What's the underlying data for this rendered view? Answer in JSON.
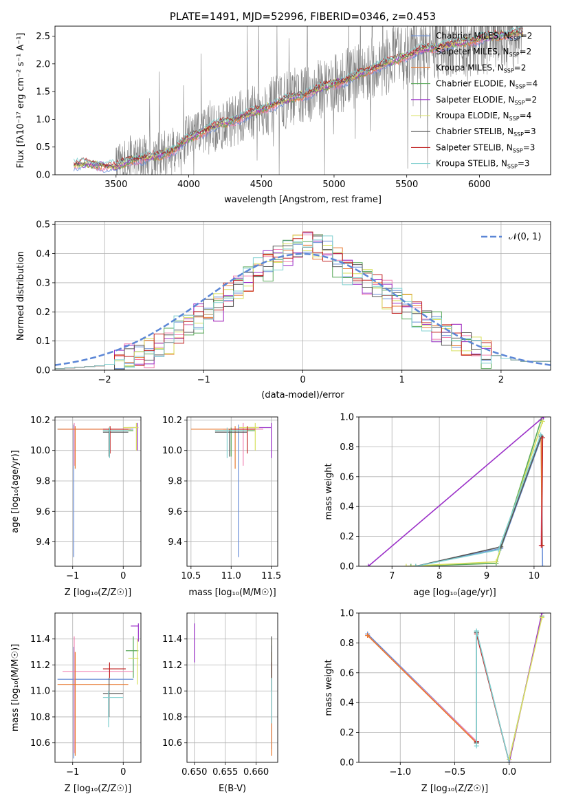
{
  "colors": {
    "Chabrier MILES": "#6a8fd8",
    "Salpeter MILES": "#f080b0",
    "Kroupa MILES": "#e87a30",
    "Chabrier ELODIE": "#58a858",
    "Salpeter ELODIE": "#9b30c8",
    "Kroupa ELODIE": "#d8e060",
    "Chabrier STELIB": "#555555",
    "Salpeter STELIB": "#c02020",
    "Kroupa STELIB": "#80d0d0",
    "data": "#808080",
    "gauss": "#5b86d6"
  },
  "chart_data": [
    {
      "type": "line",
      "title": "PLATE=1491, MJD=52996, FIBERID=0346, z=0.453",
      "xlabel": "wavelength [Angstrom, rest frame]",
      "ylabel": "Flux [f_λ 10^-17 erg cm^-2 s^-1 A^-1]",
      "xlim": [
        3080,
        6490
      ],
      "ylim": [
        0,
        2.68
      ],
      "xticks": [
        3500,
        4000,
        4500,
        5000,
        5500,
        6000
      ],
      "yticks": [
        0.0,
        0.5,
        1.0,
        1.5,
        2.0,
        2.5
      ],
      "legend_position": "top-right",
      "legend": [
        {
          "model": "Chabrier MILES",
          "label": "Chabrier MILES, N",
          "sub": "SSP",
          "tail": "=2"
        },
        {
          "model": "Salpeter MILES",
          "label": "Salpeter MILES, N",
          "sub": "SSP",
          "tail": "=2"
        },
        {
          "model": "Kroupa MILES",
          "label": "Kroupa MILES, N",
          "sub": "SSP",
          "tail": "=2"
        },
        {
          "model": "Chabrier ELODIE",
          "label": "Chabrier ELODIE, N",
          "sub": "SSP",
          "tail": "=4"
        },
        {
          "model": "Salpeter ELODIE",
          "label": "Salpeter ELODIE, N",
          "sub": "SSP",
          "tail": "=2"
        },
        {
          "model": "Kroupa ELODIE",
          "label": "Kroupa ELODIE, N",
          "sub": "SSP",
          "tail": "=4"
        },
        {
          "model": "Chabrier STELIB",
          "label": "Chabrier STELIB, N",
          "sub": "SSP",
          "tail": "=3"
        },
        {
          "model": "Salpeter STELIB",
          "label": "Salpeter STELIB, N",
          "sub": "SSP",
          "tail": "=3"
        },
        {
          "model": "Kroupa STELIB",
          "label": "Kroupa STELIB, N",
          "sub": "SSP",
          "tail": "=3"
        }
      ],
      "continuum": [
        [
          3210,
          0.18
        ],
        [
          3300,
          0.2
        ],
        [
          3400,
          0.17
        ],
        [
          3500,
          0.14
        ],
        [
          3600,
          0.27
        ],
        [
          3700,
          0.3
        ],
        [
          3800,
          0.35
        ],
        [
          3900,
          0.45
        ],
        [
          4000,
          0.66
        ],
        [
          4100,
          0.78
        ],
        [
          4200,
          0.9
        ],
        [
          4300,
          0.98
        ],
        [
          4400,
          1.08
        ],
        [
          4500,
          1.18
        ],
        [
          4600,
          1.28
        ],
        [
          4700,
          1.38
        ],
        [
          4800,
          1.45
        ],
        [
          4900,
          1.55
        ],
        [
          5000,
          1.65
        ],
        [
          5100,
          1.72
        ],
        [
          5200,
          1.85
        ],
        [
          5300,
          1.95
        ],
        [
          5400,
          2.05
        ],
        [
          5500,
          2.15
        ],
        [
          5600,
          2.25
        ],
        [
          5700,
          2.3
        ],
        [
          5800,
          2.35
        ],
        [
          5900,
          2.4
        ],
        [
          6000,
          2.45
        ],
        [
          6100,
          2.5
        ],
        [
          6250,
          2.55
        ]
      ]
    },
    {
      "type": "histogram",
      "xlabel": "(data-model)/error",
      "ylabel": "Normed distribution",
      "xlim": [
        -2.5,
        2.5
      ],
      "ylim": [
        0,
        0.51
      ],
      "xticks": [
        -2,
        -1,
        0,
        1,
        2
      ],
      "yticks": [
        0.0,
        0.1,
        0.2,
        0.3,
        0.4,
        0.5
      ],
      "legend_position": "top-right",
      "legend_label": "𝒩(0, 1)",
      "bin_width": 0.1,
      "values": [
        0.005,
        0.008,
        0.01,
        0.012,
        0.015,
        0.02,
        0.03,
        0.045,
        0.05,
        0.06,
        0.08,
        0.1,
        0.13,
        0.16,
        0.18,
        0.2,
        0.22,
        0.26,
        0.29,
        0.31,
        0.34,
        0.37,
        0.39,
        0.41,
        0.43,
        0.44,
        0.43,
        0.41,
        0.38,
        0.35,
        0.33,
        0.31,
        0.29,
        0.26,
        0.24,
        0.22,
        0.2,
        0.17,
        0.15,
        0.13,
        0.11,
        0.09,
        0.075,
        0.06,
        0.05,
        0.04,
        0.035,
        0.03,
        0.03,
        0.03
      ],
      "model_offsets": [
        0,
        0.02,
        -0.015,
        0.03,
        -0.02,
        0.015,
        0.01,
        -0.01,
        0.025
      ]
    },
    {
      "type": "errorbar",
      "xlabel": "Z [log₁₀(Z/Z☉)]",
      "ylabel": "age  [log₁₀(age/yr)]",
      "xlim": [
        -1.35,
        0.35
      ],
      "ylim": [
        9.24,
        10.22
      ],
      "xticks": [
        -1,
        0
      ],
      "yticks": [
        9.4,
        9.6,
        9.8,
        10.0,
        10.2
      ],
      "points": [
        {
          "model": "Chabrier MILES",
          "x": -0.98,
          "y": 10.14,
          "xl": -1.3,
          "xh": 0.2,
          "yl": 9.3,
          "yh": 10.17
        },
        {
          "model": "Salpeter MILES",
          "x": -0.97,
          "y": 10.14,
          "xl": -1.2,
          "xh": 0.1,
          "yl": 9.9,
          "yh": 10.18
        },
        {
          "model": "Kroupa MILES",
          "x": -0.95,
          "y": 10.14,
          "xl": -1.3,
          "xh": 0.15,
          "yl": 9.88,
          "yh": 10.16
        },
        {
          "model": "Chabrier ELODIE",
          "x": -0.28,
          "y": 10.13,
          "xl": -0.4,
          "xh": 0.2,
          "yl": 9.96,
          "yh": 10.15
        },
        {
          "model": "Salpeter ELODIE",
          "x": 0.28,
          "y": 10.15,
          "xl": 0.1,
          "xh": 0.3,
          "yl": 10.0,
          "yh": 10.18
        },
        {
          "model": "Kroupa ELODIE",
          "x": 0.26,
          "y": 10.15,
          "xl": 0.0,
          "xh": 0.3,
          "yl": 10.0,
          "yh": 10.18
        },
        {
          "model": "Chabrier STELIB",
          "x": -0.28,
          "y": 10.12,
          "xl": -0.4,
          "xh": 0.1,
          "yl": 9.96,
          "yh": 10.14
        },
        {
          "model": "Salpeter STELIB",
          "x": -0.26,
          "y": 10.14,
          "xl": -0.4,
          "xh": 0.1,
          "yl": 9.98,
          "yh": 10.16
        },
        {
          "model": "Kroupa STELIB",
          "x": -0.27,
          "y": 10.13,
          "xl": -0.4,
          "xh": 0.1,
          "yl": 9.95,
          "yh": 10.15
        }
      ]
    },
    {
      "type": "errorbar",
      "xlabel": "mass [log₁₀(M/M☉)]",
      "ylabel": "",
      "xlim": [
        10.45,
        11.58
      ],
      "ylim": [
        9.24,
        10.22
      ],
      "xticks": [
        10.5,
        11.0,
        11.5
      ],
      "yticks": [
        9.4,
        9.6,
        9.8,
        10.0,
        10.2
      ],
      "points": [
        {
          "model": "Chabrier MILES",
          "x": 11.09,
          "y": 10.14,
          "xl": 10.95,
          "xh": 11.3,
          "yl": 9.3,
          "yh": 10.17
        },
        {
          "model": "Salpeter MILES",
          "x": 11.15,
          "y": 10.14,
          "xl": 10.9,
          "xh": 11.4,
          "yl": 9.9,
          "yh": 10.18
        },
        {
          "model": "Kroupa MILES",
          "x": 11.05,
          "y": 10.14,
          "xl": 10.5,
          "xh": 11.3,
          "yl": 9.88,
          "yh": 10.16
        },
        {
          "model": "Chabrier ELODIE",
          "x": 11.0,
          "y": 10.13,
          "xl": 10.8,
          "xh": 11.3,
          "yl": 9.96,
          "yh": 10.15
        },
        {
          "model": "Salpeter ELODIE",
          "x": 11.5,
          "y": 10.15,
          "xl": 11.2,
          "xh": 11.5,
          "yl": 9.95,
          "yh": 10.18
        },
        {
          "model": "Kroupa ELODIE",
          "x": 11.3,
          "y": 10.15,
          "xl": 11.1,
          "xh": 11.35,
          "yl": 10.0,
          "yh": 10.18
        },
        {
          "model": "Chabrier STELIB",
          "x": 10.98,
          "y": 10.12,
          "xl": 10.8,
          "xh": 11.2,
          "yl": 9.96,
          "yh": 10.14
        },
        {
          "model": "Salpeter STELIB",
          "x": 11.2,
          "y": 10.14,
          "xl": 11.0,
          "xh": 11.3,
          "yl": 9.98,
          "yh": 10.16
        },
        {
          "model": "Kroupa STELIB",
          "x": 10.95,
          "y": 10.13,
          "xl": 10.8,
          "xh": 11.2,
          "yl": 9.95,
          "yh": 10.15
        }
      ]
    },
    {
      "type": "line",
      "xlabel": "age  [log₁₀(age/yr)]",
      "ylabel": "mass weight",
      "xlim": [
        6.3,
        10.35
      ],
      "ylim": [
        0,
        1.0
      ],
      "xticks": [
        7,
        8,
        9,
        10
      ],
      "yticks": [
        0.0,
        0.2,
        0.4,
        0.6,
        0.8,
        1.0
      ],
      "series": [
        {
          "model": "Chabrier MILES",
          "x": [
            7.5,
            9.3,
            10.15,
            10.18
          ],
          "y": [
            0.0,
            0.12,
            0.86,
            0.0
          ]
        },
        {
          "model": "Salpeter MILES",
          "x": [
            10.15,
            10.18
          ],
          "y": [
            0.14,
            0.86
          ]
        },
        {
          "model": "Kroupa MILES",
          "x": [
            10.15,
            10.17
          ],
          "y": [
            0.86,
            0.14
          ]
        },
        {
          "model": "Chabrier ELODIE",
          "x": [
            7.4,
            9.2,
            10.15
          ],
          "y": [
            0.0,
            0.02,
            0.98
          ]
        },
        {
          "model": "Salpeter ELODIE",
          "x": [
            6.5,
            10.2
          ],
          "y": [
            0.0,
            1.0
          ]
        },
        {
          "model": "Kroupa ELODIE",
          "x": [
            7.3,
            9.2,
            10.18
          ],
          "y": [
            0.0,
            0.03,
            0.97
          ]
        },
        {
          "model": "Chabrier STELIB",
          "x": [
            7.5,
            9.3,
            10.15
          ],
          "y": [
            0.0,
            0.13,
            0.87
          ]
        },
        {
          "model": "Salpeter STELIB",
          "x": [
            10.16,
            10.18
          ],
          "y": [
            0.14,
            0.86
          ]
        },
        {
          "model": "Kroupa STELIB",
          "x": [
            7.5,
            9.25,
            10.14
          ],
          "y": [
            0.0,
            0.11,
            0.88
          ]
        }
      ]
    },
    {
      "type": "errorbar",
      "xlabel": "Z [log₁₀(Z/Z☉)]",
      "ylabel": "mass [log₁₀(M/M☉)]",
      "xlim": [
        -1.35,
        0.35
      ],
      "ylim": [
        10.45,
        11.6
      ],
      "xticks": [
        -1,
        0
      ],
      "yticks": [
        10.6,
        10.8,
        11.0,
        11.2,
        11.4
      ],
      "points": [
        {
          "model": "Chabrier MILES",
          "x": -0.98,
          "y": 11.09,
          "xl": -1.3,
          "xh": 0.2,
          "yl": 10.48,
          "yh": 11.34
        },
        {
          "model": "Salpeter MILES",
          "x": -0.97,
          "y": 11.15,
          "xl": -1.2,
          "xh": 0.2,
          "yl": 10.52,
          "yh": 11.42
        },
        {
          "model": "Kroupa MILES",
          "x": -0.95,
          "y": 11.05,
          "xl": -1.3,
          "xh": 0.1,
          "yl": 10.5,
          "yh": 11.3
        },
        {
          "model": "Chabrier ELODIE",
          "x": 0.2,
          "y": 11.31,
          "xl": 0.05,
          "xh": 0.3,
          "yl": 11.1,
          "yh": 11.42
        },
        {
          "model": "Salpeter ELODIE",
          "x": 0.3,
          "y": 11.5,
          "xl": 0.15,
          "xh": 0.3,
          "yl": 11.38,
          "yh": 11.52
        },
        {
          "model": "Kroupa ELODIE",
          "x": 0.28,
          "y": 11.25,
          "xl": 0.1,
          "xh": 0.3,
          "yl": 11.05,
          "yh": 11.4
        },
        {
          "model": "Chabrier STELIB",
          "x": -0.28,
          "y": 10.98,
          "xl": -0.4,
          "xh": 0.0,
          "yl": 10.8,
          "yh": 11.1
        },
        {
          "model": "Salpeter STELIB",
          "x": -0.27,
          "y": 11.17,
          "xl": -0.4,
          "xh": 0.05,
          "yl": 11.1,
          "yh": 11.22
        },
        {
          "model": "Kroupa STELIB",
          "x": -0.29,
          "y": 10.95,
          "xl": -0.4,
          "xh": 0.0,
          "yl": 10.72,
          "yh": 11.0
        }
      ]
    },
    {
      "type": "errorbar",
      "xlabel": "E(B-V)",
      "ylabel": "",
      "xlim": [
        0.6488,
        0.6635
      ],
      "ylim": [
        10.45,
        11.6
      ],
      "xticks": [
        0.65,
        0.655,
        0.66
      ],
      "xtick_labels": [
        "0.650",
        "0.655",
        "0.660"
      ],
      "yticks": [
        10.6,
        10.8,
        11.0,
        11.2,
        11.4
      ],
      "points": [
        {
          "model": "Salpeter ELODIE",
          "x": 0.65,
          "y": 11.4,
          "yl": 11.22,
          "yh": 11.52
        },
        {
          "model": "Chabrier MILES",
          "x": 0.6625,
          "y": 11.09,
          "yl": 10.55,
          "yh": 11.35
        },
        {
          "model": "Kroupa MILES",
          "x": 0.6625,
          "y": 11.05,
          "yl": 10.5,
          "yh": 11.3
        },
        {
          "model": "Kroupa ELODIE",
          "x": 0.6625,
          "y": 11.3,
          "yl": 11.1,
          "yh": 11.4
        },
        {
          "model": "Salpeter STELIB",
          "x": 0.6625,
          "y": 11.17,
          "yl": 11.1,
          "yh": 11.22
        },
        {
          "model": "Chabrier STELIB",
          "x": 0.6625,
          "y": 11.2,
          "yl": 11.0,
          "yh": 11.42
        },
        {
          "model": "Kroupa STELIB",
          "x": 0.6625,
          "y": 10.95,
          "yl": 10.75,
          "yh": 11.1
        }
      ]
    },
    {
      "type": "line",
      "xlabel": "Z [log₁₀(Z/Z☉)]",
      "ylabel": "mass weight",
      "xlim": [
        -1.38,
        0.38
      ],
      "ylim": [
        0,
        1.0
      ],
      "xticks": [
        -1.0,
        -0.5,
        0.0
      ],
      "xtick_labels": [
        "−1.0",
        "−0.5",
        "0.0"
      ],
      "yticks": [
        0.0,
        0.2,
        0.4,
        0.6,
        0.8,
        1.0
      ],
      "series": [
        {
          "model": "Chabrier MILES",
          "x": [
            -1.3,
            -0.3
          ],
          "y": [
            0.86,
            0.14
          ]
        },
        {
          "model": "Salpeter MILES",
          "x": [
            -1.3,
            -0.3
          ],
          "y": [
            0.85,
            0.14
          ]
        },
        {
          "model": "Kroupa MILES",
          "x": [
            -1.3,
            -0.3
          ],
          "y": [
            0.85,
            0.13
          ]
        },
        {
          "model": "Chabrier ELODIE",
          "x": [
            0.0,
            0.3
          ],
          "y": [
            0.02,
            0.98
          ]
        },
        {
          "model": "Salpeter ELODIE",
          "x": [
            0.0,
            0.3
          ],
          "y": [
            0.0,
            1.0
          ]
        },
        {
          "model": "Kroupa ELODIE",
          "x": [
            0.0,
            0.3
          ],
          "y": [
            0.02,
            0.97
          ]
        },
        {
          "model": "Chabrier STELIB",
          "x": [
            -0.3,
            -0.3,
            0.0
          ],
          "y": [
            0.13,
            0.87,
            0.0
          ]
        },
        {
          "model": "Salpeter STELIB",
          "x": [
            -0.3,
            -0.3,
            0.0
          ],
          "y": [
            0.14,
            0.86,
            0.0
          ]
        },
        {
          "model": "Kroupa STELIB",
          "x": [
            -0.3,
            -0.3,
            0.0
          ],
          "y": [
            0.11,
            0.88,
            0.0
          ]
        }
      ]
    }
  ]
}
